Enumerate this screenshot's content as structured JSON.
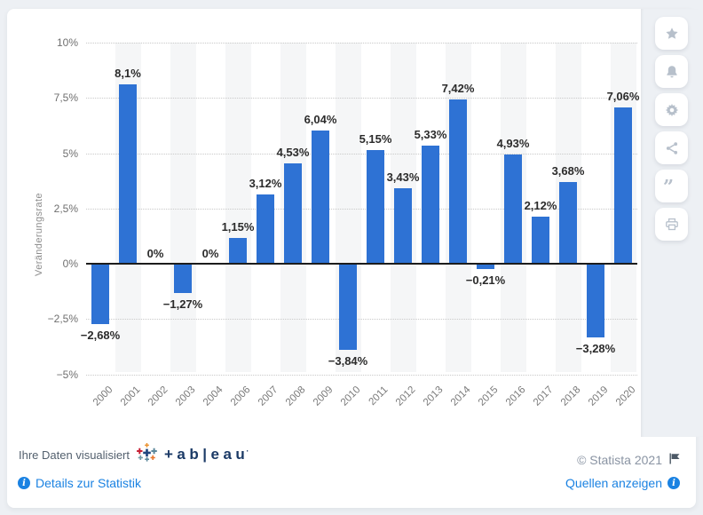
{
  "chart_data": {
    "type": "bar",
    "title": "",
    "xlabel": "",
    "ylabel": "Veränderungsrate",
    "categories": [
      "2000",
      "2001",
      "2002",
      "2003",
      "2004",
      "2006",
      "2007",
      "2008",
      "2009",
      "2010",
      "2011",
      "2012",
      "2013",
      "2014",
      "2015",
      "2016",
      "2017",
      "2018",
      "2019",
      "2020"
    ],
    "values": [
      -2.68,
      8.1,
      0,
      -1.27,
      0,
      1.15,
      3.12,
      4.53,
      6.04,
      -3.84,
      5.15,
      3.43,
      5.33,
      7.42,
      -0.21,
      4.93,
      2.12,
      3.68,
      -3.28,
      7.06
    ],
    "value_labels": [
      "−2,68%",
      "8,1%",
      "0%",
      "−1,27%",
      "0%",
      "1,15%",
      "3,12%",
      "4,53%",
      "6,04%",
      "−3,84%",
      "5,15%",
      "3,43%",
      "5,33%",
      "7,42%",
      "−0,21%",
      "4,93%",
      "2,12%",
      "3,68%",
      "−3,28%",
      "7,06%"
    ],
    "y_ticks": [
      {
        "value": 10,
        "label": "10%"
      },
      {
        "value": 7.5,
        "label": "7,5%"
      },
      {
        "value": 5,
        "label": "5%"
      },
      {
        "value": 2.5,
        "label": "2,5%"
      },
      {
        "value": 0,
        "label": "0%"
      },
      {
        "value": -2.5,
        "label": "−2,5%"
      },
      {
        "value": -5,
        "label": "−5%"
      }
    ],
    "ylim": [
      -5,
      10
    ],
    "grid": "horizontal-dotted",
    "legend": "none",
    "bar_color": "#2e72d4",
    "band_color": "#f5f6f7",
    "banding": "alternating-columns"
  },
  "actions": {
    "buttons": [
      {
        "name": "favorite-button",
        "icon": "star"
      },
      {
        "name": "notifications-button",
        "icon": "bell"
      },
      {
        "name": "settings-button",
        "icon": "gear"
      },
      {
        "name": "share-button",
        "icon": "share"
      },
      {
        "name": "cite-button",
        "icon": "quote"
      },
      {
        "name": "print-button",
        "icon": "printer"
      }
    ],
    "icon_color": "#b7c0cb"
  },
  "footer": {
    "visualized_by_text": "Ihre Daten visualisiert",
    "tableau_wordmark": "+ab|eau",
    "tableau_trademark": "·",
    "details_link": "Details zur Statistik",
    "info_glyph": "i",
    "copyright": "© Statista 2021",
    "sources_link": "Quellen anzeigen"
  },
  "colors": {
    "page_background": "#edf0f4",
    "card_background": "#ffffff",
    "bar": "#2e72d4",
    "link_blue": "#1a82e2",
    "tableau_navy": "#1b3a66",
    "zero_line": "#1c1c1c"
  }
}
